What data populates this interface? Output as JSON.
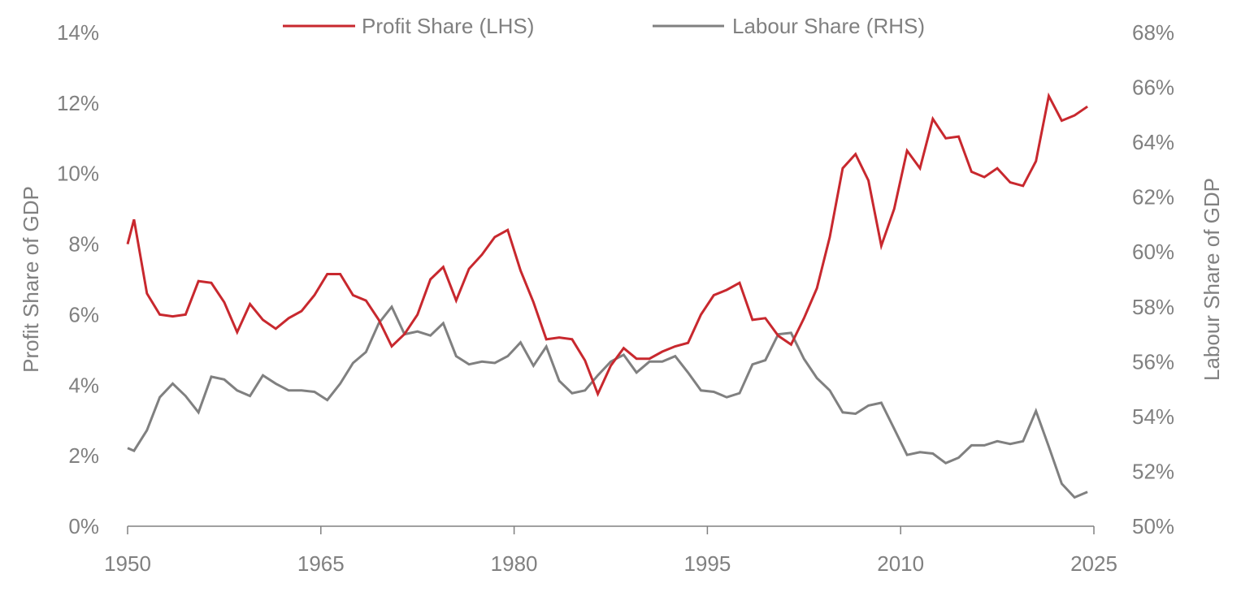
{
  "chart_data": {
    "type": "line",
    "title": "",
    "xlabel": "",
    "ylabel_left": "Profit Share of GDP",
    "ylabel_right": "Labour Share of GDP",
    "x_ticks": [
      "1950",
      "1965",
      "1980",
      "1995",
      "2010",
      "2025"
    ],
    "xlim": [
      1950,
      2025
    ],
    "y_left_ticks": [
      "0%",
      "2%",
      "4%",
      "6%",
      "8%",
      "10%",
      "12%",
      "14%"
    ],
    "y_left_lim": [
      0,
      14
    ],
    "y_right_ticks": [
      "50%",
      "52%",
      "54%",
      "56%",
      "58%",
      "60%",
      "62%",
      "64%",
      "66%",
      "68%"
    ],
    "y_right_lim": [
      50,
      68
    ],
    "legend_position": "top-center",
    "colors": {
      "profit": "#c8282e",
      "labour": "#808080"
    },
    "x_note": "annual observations plotted mid-year; series begins at left edge of 1950",
    "x": [
      1950,
      1950.5,
      1951.5,
      1952.5,
      1953.5,
      1954.5,
      1955.5,
      1956.5,
      1957.5,
      1958.5,
      1959.5,
      1960.5,
      1961.5,
      1962.5,
      1963.5,
      1964.5,
      1965.5,
      1966.5,
      1967.5,
      1968.5,
      1969.5,
      1970.5,
      1971.5,
      1972.5,
      1973.5,
      1974.5,
      1975.5,
      1976.5,
      1977.5,
      1978.5,
      1979.5,
      1980.5,
      1981.5,
      1982.5,
      1983.5,
      1984.5,
      1985.5,
      1986.5,
      1987.5,
      1988.5,
      1989.5,
      1990.5,
      1991.5,
      1992.5,
      1993.5,
      1994.5,
      1995.5,
      1996.5,
      1997.5,
      1998.5,
      1999.5,
      2000.5,
      2001.5,
      2002.5,
      2003.5,
      2004.5,
      2005.5,
      2006.5,
      2007.5,
      2008.5,
      2009.5,
      2010.5,
      2011.5,
      2012.5,
      2013.5,
      2014.5,
      2015.5,
      2016.5,
      2017.5,
      2018.5,
      2019.5,
      2020.5,
      2021.5,
      2022.5,
      2023.5,
      2024.5
    ],
    "series": [
      {
        "name": "Profit Share (LHS)",
        "axis": "left",
        "values": [
          8.0,
          8.7,
          6.6,
          6.0,
          5.95,
          6.0,
          6.95,
          6.9,
          6.35,
          5.5,
          6.3,
          5.85,
          5.6,
          5.9,
          6.1,
          6.55,
          7.15,
          7.15,
          6.55,
          6.4,
          5.85,
          5.1,
          5.45,
          6.0,
          7.0,
          7.35,
          6.4,
          7.3,
          7.7,
          8.2,
          8.4,
          7.25,
          6.35,
          5.3,
          5.35,
          5.3,
          4.7,
          3.75,
          4.55,
          5.05,
          4.75,
          4.75,
          4.95,
          5.1,
          5.2,
          6.0,
          6.55,
          6.7,
          6.9,
          5.85,
          5.9,
          5.4,
          5.15,
          5.9,
          6.75,
          8.2,
          10.15,
          10.55,
          9.8,
          7.95,
          9.0,
          10.65,
          10.15,
          11.55,
          11.0,
          11.05,
          10.05,
          9.9,
          10.15,
          9.75,
          9.65,
          10.35,
          12.2,
          11.5,
          11.65,
          11.9
        ]
      },
      {
        "name": "Labour Share (RHS)",
        "axis": "right",
        "values": [
          52.85,
          52.75,
          53.5,
          54.7,
          55.2,
          54.75,
          54.15,
          55.45,
          55.35,
          54.95,
          54.75,
          55.5,
          55.2,
          54.95,
          54.95,
          54.9,
          54.6,
          55.2,
          55.95,
          56.35,
          57.4,
          58.0,
          57.0,
          57.1,
          56.95,
          57.4,
          56.2,
          55.9,
          56.0,
          55.95,
          56.2,
          56.7,
          55.85,
          56.55,
          55.3,
          54.85,
          54.95,
          55.5,
          56.0,
          56.25,
          55.6,
          56.0,
          56.0,
          56.2,
          55.6,
          54.95,
          54.9,
          54.7,
          54.85,
          55.9,
          56.05,
          57.0,
          57.05,
          56.1,
          55.4,
          54.95,
          54.15,
          54.1,
          54.4,
          54.5,
          53.55,
          52.6,
          52.7,
          52.65,
          52.3,
          52.5,
          52.95,
          52.95,
          53.1,
          53.0,
          53.1,
          54.2,
          52.9,
          51.55,
          51.05,
          51.25
        ]
      }
    ]
  }
}
